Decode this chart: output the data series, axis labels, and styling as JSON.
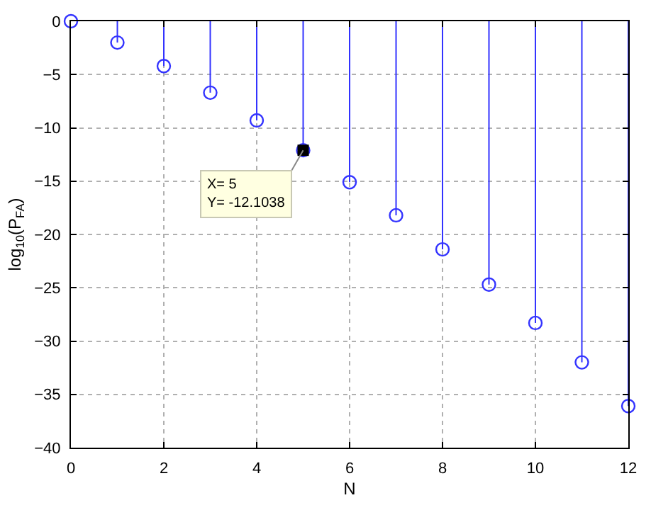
{
  "chart_data": {
    "type": "lollipop",
    "xlabel": "N",
    "ylabel": "log$_{10}$(P$_{FA}$)",
    "x": [
      0,
      1,
      2,
      3,
      4,
      5,
      6,
      7,
      8,
      9,
      10,
      11,
      12
    ],
    "series": [
      {
        "color": "#3333ff",
        "values": [
          0,
          -2.0,
          -4.2,
          -6.7,
          -9.3,
          -12.1038,
          -15.1,
          -18.2,
          -21.4,
          -24.7,
          -28.3,
          -32.0,
          -36.1
        ]
      }
    ],
    "marker": "circle",
    "annotations": [
      {
        "text": "X= 5\nY= -12.1038",
        "x": 5,
        "y": -12.1038
      }
    ],
    "xlim": [
      0,
      12
    ],
    "xticks": [
      0,
      2,
      4,
      6,
      8,
      10,
      12
    ],
    "ylim": [
      -40,
      0
    ],
    "yticks": [
      -40,
      -35,
      -30,
      -25,
      -20,
      -15,
      -10,
      -5,
      0
    ],
    "grid": true
  }
}
